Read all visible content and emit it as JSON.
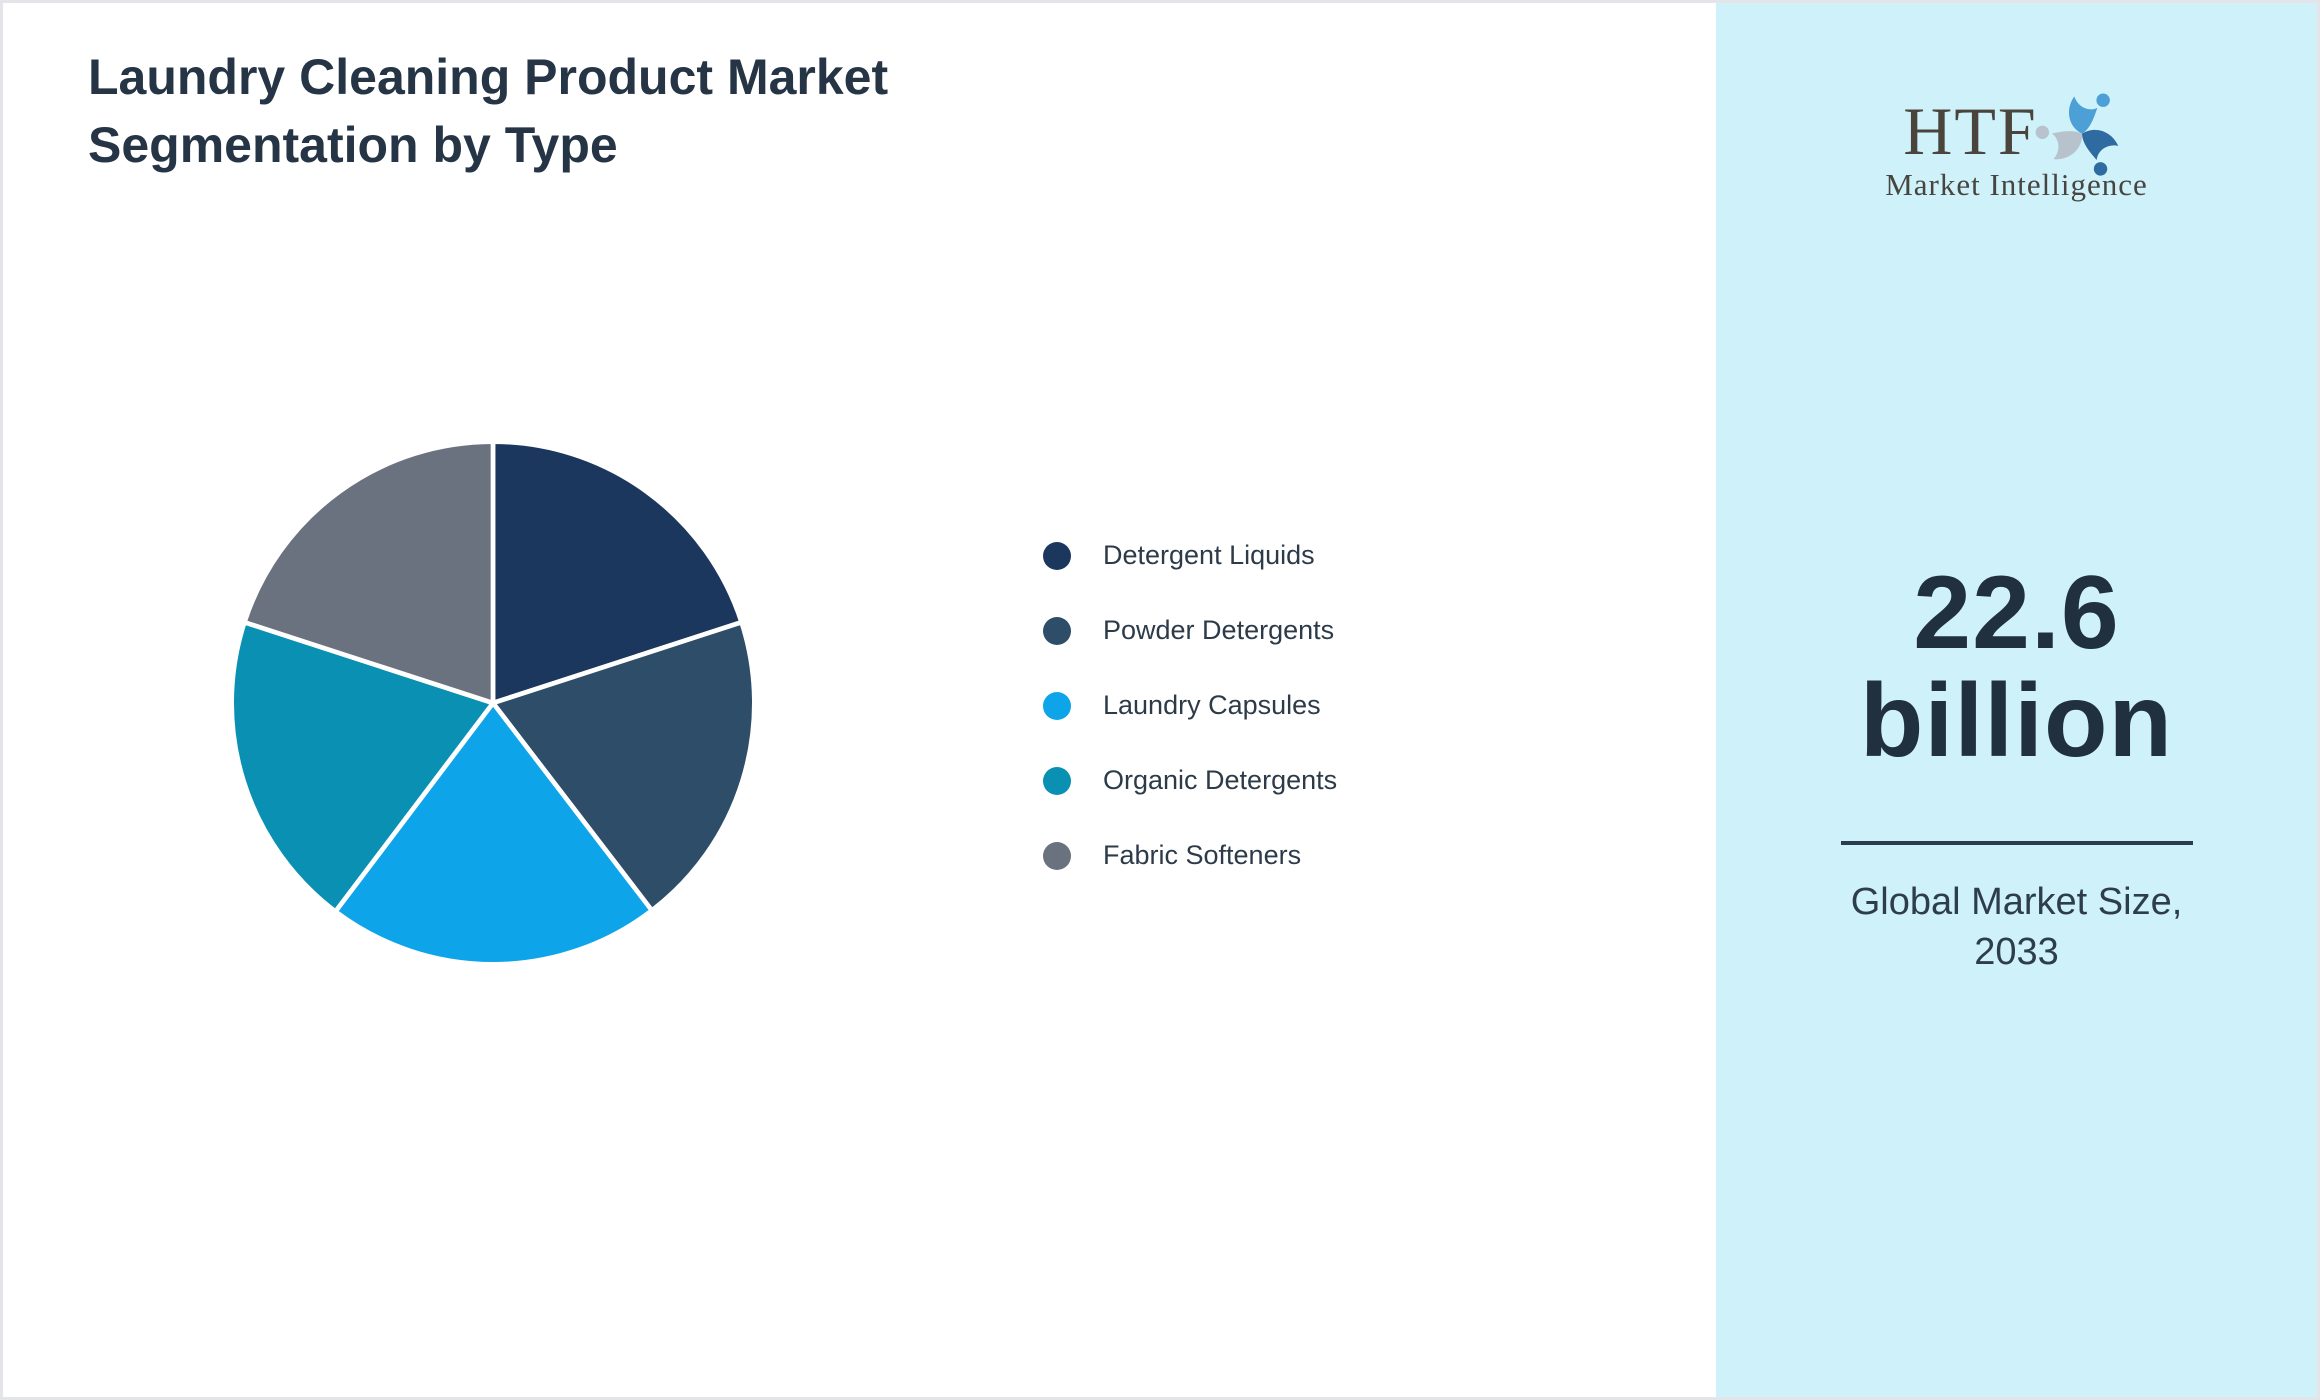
{
  "header": {
    "title_line1": "Laundry Cleaning Product Market",
    "title_line2": "Segmentation by Type"
  },
  "chart_data": {
    "type": "pie",
    "title": "Laundry Cleaning Product Market Segmentation by Type",
    "start_angle_deg": 0,
    "direction": "clockwise",
    "values_are_estimated_percent_share": true,
    "legend_position": "right",
    "separator_color": "#ffffff",
    "slices": [
      {
        "label": "Detergent Liquids",
        "value": 20.0,
        "color": "#1c375e"
      },
      {
        "label": "Powder Detergents",
        "value": 19.6,
        "color": "#2e4d68"
      },
      {
        "label": "Laundry Capsules",
        "value": 20.7,
        "color": "#0ea4e9"
      },
      {
        "label": "Organic Detergents",
        "value": 19.7,
        "color": "#0990b2"
      },
      {
        "label": "Fabric Softeners",
        "value": 20.0,
        "color": "#6a7280"
      }
    ]
  },
  "sidebar": {
    "background_color": "#cff2fa",
    "logo": {
      "text": "HTF",
      "subtext": "Market Intelligence"
    },
    "stat": {
      "value_line1": "22.6",
      "value_line2": "billion",
      "label_line1": "Global Market Size,",
      "label_line2": "2033"
    }
  }
}
